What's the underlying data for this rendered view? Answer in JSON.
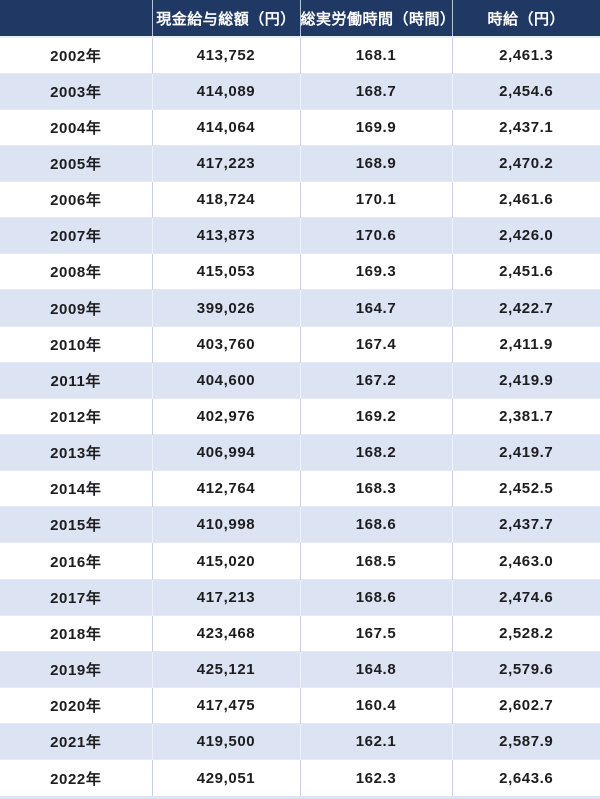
{
  "table": {
    "columns": [
      {
        "label": ""
      },
      {
        "label": "現金給与総額（円）"
      },
      {
        "label": "総実労働時間（時間）"
      },
      {
        "label": "時給（円）"
      }
    ],
    "rows": [
      {
        "year": "2002年",
        "cash_wage": "413,752",
        "hours": "168.1",
        "hourly_wage": "2,461.3"
      },
      {
        "year": "2003年",
        "cash_wage": "414,089",
        "hours": "168.7",
        "hourly_wage": "2,454.6"
      },
      {
        "year": "2004年",
        "cash_wage": "414,064",
        "hours": "169.9",
        "hourly_wage": "2,437.1"
      },
      {
        "year": "2005年",
        "cash_wage": "417,223",
        "hours": "168.9",
        "hourly_wage": "2,470.2"
      },
      {
        "year": "2006年",
        "cash_wage": "418,724",
        "hours": "170.1",
        "hourly_wage": "2,461.6"
      },
      {
        "year": "2007年",
        "cash_wage": "413,873",
        "hours": "170.6",
        "hourly_wage": "2,426.0"
      },
      {
        "year": "2008年",
        "cash_wage": "415,053",
        "hours": "169.3",
        "hourly_wage": "2,451.6"
      },
      {
        "year": "2009年",
        "cash_wage": "399,026",
        "hours": "164.7",
        "hourly_wage": "2,422.7"
      },
      {
        "year": "2010年",
        "cash_wage": "403,760",
        "hours": "167.4",
        "hourly_wage": "2,411.9"
      },
      {
        "year": "2011年",
        "cash_wage": "404,600",
        "hours": "167.2",
        "hourly_wage": "2,419.9"
      },
      {
        "year": "2012年",
        "cash_wage": "402,976",
        "hours": "169.2",
        "hourly_wage": "2,381.7"
      },
      {
        "year": "2013年",
        "cash_wage": "406,994",
        "hours": "168.2",
        "hourly_wage": "2,419.7"
      },
      {
        "year": "2014年",
        "cash_wage": "412,764",
        "hours": "168.3",
        "hourly_wage": "2,452.5"
      },
      {
        "year": "2015年",
        "cash_wage": "410,998",
        "hours": "168.6",
        "hourly_wage": "2,437.7"
      },
      {
        "year": "2016年",
        "cash_wage": "415,020",
        "hours": "168.5",
        "hourly_wage": "2,463.0"
      },
      {
        "year": "2017年",
        "cash_wage": "417,213",
        "hours": "168.6",
        "hourly_wage": "2,474.6"
      },
      {
        "year": "2018年",
        "cash_wage": "423,468",
        "hours": "167.5",
        "hourly_wage": "2,528.2"
      },
      {
        "year": "2019年",
        "cash_wage": "425,121",
        "hours": "164.8",
        "hourly_wage": "2,579.6"
      },
      {
        "year": "2020年",
        "cash_wage": "417,475",
        "hours": "160.4",
        "hourly_wage": "2,602.7"
      },
      {
        "year": "2021年",
        "cash_wage": "419,500",
        "hours": "162.1",
        "hourly_wage": "2,587.9"
      },
      {
        "year": "2022年",
        "cash_wage": "429,051",
        "hours": "162.3",
        "hourly_wage": "2,643.6"
      }
    ]
  },
  "colors": {
    "header_bg": "#1f3864",
    "header_text": "#ffffff",
    "row_bg": "#ffffff",
    "row_alt_bg": "#dce3f2",
    "body_text": "#1d1d1f",
    "grid_line": "#c7d1e8"
  },
  "chart_data": {
    "type": "table",
    "title": "",
    "columns": [
      "",
      "現金給与総額（円）",
      "総実労働時間（時間）",
      "時給（円）"
    ],
    "years": [
      "2002年",
      "2003年",
      "2004年",
      "2005年",
      "2006年",
      "2007年",
      "2008年",
      "2009年",
      "2010年",
      "2011年",
      "2012年",
      "2013年",
      "2014年",
      "2015年",
      "2016年",
      "2017年",
      "2018年",
      "2019年",
      "2020年",
      "2021年",
      "2022年"
    ],
    "series": [
      {
        "name": "現金給与総額（円）",
        "values": [
          413752,
          414089,
          414064,
          417223,
          418724,
          413873,
          415053,
          399026,
          403760,
          404600,
          402976,
          406994,
          412764,
          410998,
          415020,
          417213,
          423468,
          425121,
          417475,
          419500,
          429051
        ]
      },
      {
        "name": "総実労働時間（時間）",
        "values": [
          168.1,
          168.7,
          169.9,
          168.9,
          170.1,
          170.6,
          169.3,
          164.7,
          167.4,
          167.2,
          169.2,
          168.2,
          168.3,
          168.6,
          168.5,
          168.6,
          167.5,
          164.8,
          160.4,
          162.1,
          162.3
        ]
      },
      {
        "name": "時給（円）",
        "values": [
          2461.3,
          2454.6,
          2437.1,
          2470.2,
          2461.6,
          2426.0,
          2451.6,
          2422.7,
          2411.9,
          2419.9,
          2381.7,
          2419.7,
          2452.5,
          2437.7,
          2463.0,
          2474.6,
          2528.2,
          2579.6,
          2602.7,
          2587.9,
          2643.6
        ]
      }
    ]
  }
}
